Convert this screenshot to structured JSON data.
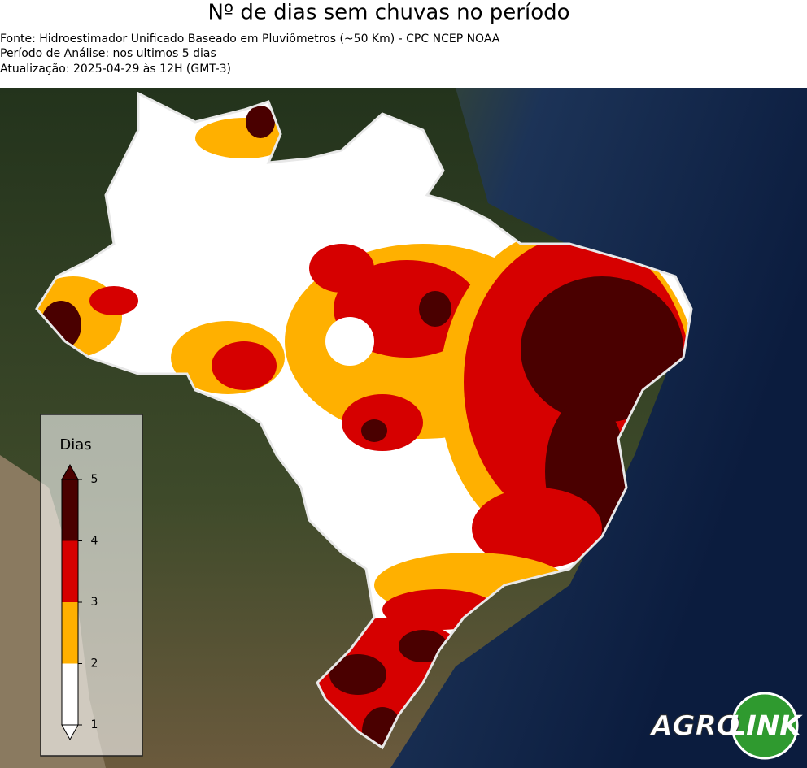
{
  "header": {
    "title": "Nº de dias sem chuvas no período",
    "lines": [
      "Fonte: Hidroestimador Unificado Baseado em Pluviômetros (~50 Km) - CPC NCEP NOAA",
      "Período de Análise: nos ultimos 5 dias",
      "Atualização: 2025-04-29 às 12H (GMT-3)"
    ]
  },
  "legend": {
    "title": "Dias",
    "ticks": [
      1,
      2,
      3,
      4,
      5
    ],
    "range": [
      1,
      5
    ],
    "colors": [
      "#ffffff",
      "#ffb000",
      "#d60000",
      "#4a0000"
    ]
  },
  "logo": {
    "left": "AGRO",
    "right": "LINK"
  }
}
